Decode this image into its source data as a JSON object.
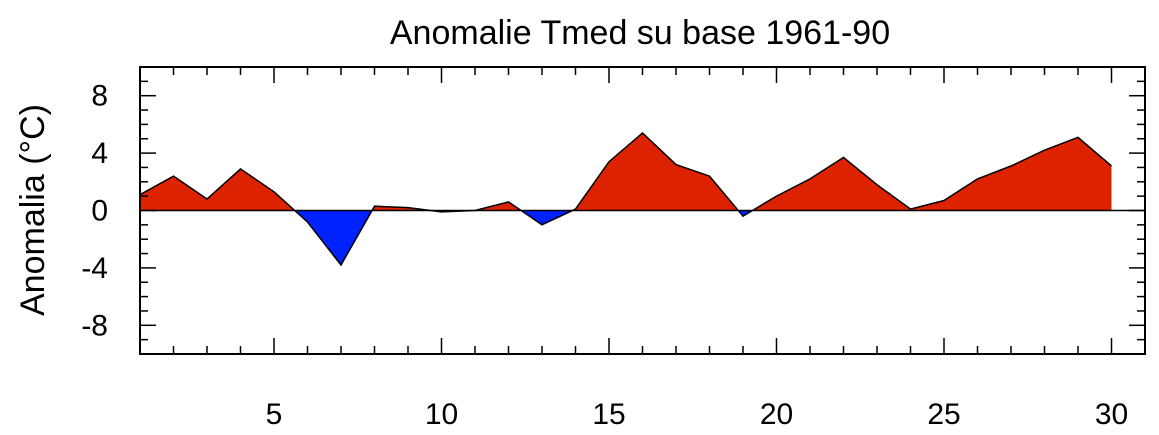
{
  "chart_data": {
    "type": "area",
    "title": "Anomalie Tmed su base 1961-90",
    "xlabel": "",
    "ylabel": "Anomalia (°C)",
    "xlim": [
      1,
      31
    ],
    "ylim": [
      -10,
      10
    ],
    "xticks": [
      5,
      10,
      15,
      20,
      25,
      30
    ],
    "yticks": [
      -8,
      -4,
      0,
      4,
      8
    ],
    "grid": false,
    "legend": "none",
    "colors": {
      "positive": "#dd2200",
      "negative": "#0022ff",
      "line": "#000000"
    },
    "series": [
      {
        "x": [
          1,
          2,
          3,
          4,
          5,
          6,
          7,
          8,
          9,
          10,
          11,
          12,
          13,
          14,
          15,
          16,
          17,
          18,
          19,
          20,
          21,
          22,
          23,
          24,
          25,
          26,
          27,
          28,
          29,
          30
        ],
        "values": [
          1.1,
          2.4,
          0.8,
          2.9,
          1.3,
          -0.8,
          -3.8,
          0.3,
          0.2,
          -0.1,
          0.0,
          0.6,
          -1.0,
          0.1,
          3.4,
          5.4,
          3.2,
          2.4,
          -0.4,
          1.0,
          2.2,
          3.7,
          1.8,
          0.1,
          0.7,
          2.2,
          3.1,
          4.2,
          5.1,
          3.1
        ]
      }
    ]
  }
}
